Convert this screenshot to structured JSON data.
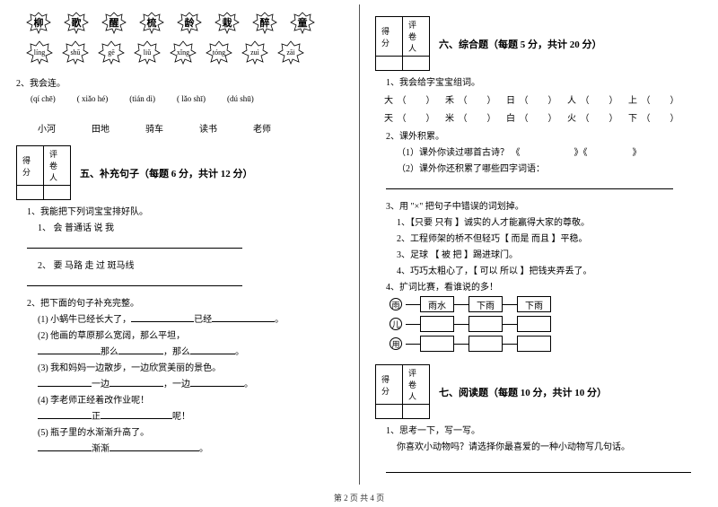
{
  "leaves_top": [
    "柳",
    "歌",
    "醒",
    "梳",
    "龄",
    "栽",
    "醉",
    "童"
  ],
  "leaves_pinyin": [
    "líng",
    "shū",
    "gē",
    "liǔ",
    "xǐng",
    "tóng",
    "zuì",
    "zāi"
  ],
  "left": {
    "q2_label": "2、我会连。",
    "match_pinyin": [
      "(qí chē)",
      "( xiǎo hé)",
      "(tián dì)",
      "( lǎo shī)",
      "(dú shū)"
    ],
    "match_cn": [
      "小河",
      "田地",
      "骑车",
      "读书",
      "老师"
    ],
    "score_h1": "得分",
    "score_h2": "评卷人",
    "sec5_title": "五、补充句子（每题 6 分，共计 12 分）",
    "q5_1": "1、我能把下列词宝宝排好队。",
    "q5_1_1": "1、  会    普通话    说    我",
    "q5_1_2": "2、  要    马路    走    过    斑马线",
    "q5_2": "2、把下面的句子补充完整。",
    "q5_2_1": "(1) 小蜗牛已经长大了，",
    "q5_2_2pre": "(2) 他画的草原那么宽阔，那么平坦，",
    "q5_2_2mid": "那么",
    "q5_2_3": "(3) 我和妈妈一边散步，一边欣赏美丽的景色。",
    "q5_2_3b": "一边",
    "q5_2_3c": "，一边",
    "q5_2_4": "(4) 李老师正经着改作业呢！",
    "q5_2_4b": "正",
    "q5_2_4c": "呢！",
    "q5_2_5": "(5) 瓶子里的水渐渐升高了。",
    "q5_2_5b": "渐渐"
  },
  "right": {
    "score_h1": "得分",
    "score_h2": "评卷人",
    "sec6_title": "六、综合题（每题 5 分，共计 20 分）",
    "q6_1": "1、我会给字宝宝组词。",
    "row1": [
      [
        "大",
        "（",
        "）"
      ],
      [
        "禾",
        "（",
        "）"
      ],
      [
        "日",
        "（",
        "）"
      ],
      [
        "人",
        "（",
        "）"
      ],
      [
        "上",
        "（",
        "）"
      ]
    ],
    "row2": [
      [
        "天",
        "（",
        "）"
      ],
      [
        "米",
        "（",
        "）"
      ],
      [
        "白",
        "（",
        "）"
      ],
      [
        "火",
        "（",
        "）"
      ],
      [
        "下",
        "（",
        "）"
      ]
    ],
    "q6_2": "2、课外积累。",
    "q6_2_1": "（1）课外你读过哪首古诗？  《",
    "q6_2_1b": "》《",
    "q6_2_1c": "》",
    "q6_2_2": "（2）课外你还积累了哪些四字词语：",
    "q6_3": "3、用 \"×\" 把句子中错误的词划掉。",
    "q6_3_1": "1、【只要   只有  】诚实的人才能赢得大家的尊敬。",
    "q6_3_2": "2、工程师架的桥不但轻巧【 而是   而且 】平稳。",
    "q6_3_3": "3、足球 【  被    把  】踢进球门。",
    "q6_3_4": "4、巧巧太粗心了，【 可以    所以 】把钱夹弄丢了。",
    "q6_4": "4、扩词比赛，看谁说的多！",
    "chain1": [
      "雨",
      "雨水",
      "下雨",
      "下雨"
    ],
    "chain2_start": "儿",
    "chain3_start": "用",
    "sec7_title": "七、阅读题（每题 10 分，共计 10 分）",
    "q7_1": "1、思考一下，写一写。",
    "q7_1_text": "你喜欢小动物吗？请选择你最喜爱的一种小动物写几句话。"
  },
  "footer": "第 2 页 共 4 页"
}
